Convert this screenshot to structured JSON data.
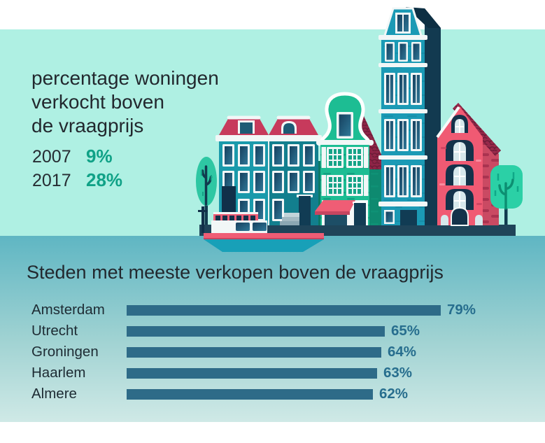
{
  "top": {
    "title": "percentage woningen\nverkocht boven\nde vraagprijs",
    "stats": [
      {
        "year": "2007",
        "value": "9%"
      },
      {
        "year": "2017",
        "value": "28%"
      }
    ]
  },
  "chart": {
    "title": "Steden met meeste verkopen boven de vraagprijs"
  },
  "chart_data": {
    "type": "bar",
    "orientation": "horizontal",
    "title": "Steden met meeste verkopen boven de vraagprijs",
    "categories": [
      "Amsterdam",
      "Utrecht",
      "Groningen",
      "Haarlem",
      "Almere"
    ],
    "values": [
      79,
      65,
      64,
      63,
      62
    ],
    "value_labels": [
      "79%",
      "65%",
      "64%",
      "63%",
      "62%"
    ],
    "xlim": [
      0,
      100
    ],
    "grid": false,
    "legend": false
  },
  "illustration": {
    "scene_elements": [
      "tree-left",
      "house-blue-canal",
      "house-green-bell-gable",
      "house-maroon-roof",
      "house-tall-teal",
      "house-red-brick",
      "tree-right",
      "canal-boat",
      "quay"
    ]
  },
  "colors": {
    "mint_bg": "#aff0e3",
    "water_top": "#5fb6c3",
    "water_bottom": "#cfe9e6",
    "accent_teal": "#10a287",
    "bar_blue": "#2e6b88",
    "value_blue": "#276e8e",
    "text_dark": "#22282e",
    "house_red": "#c73a5c",
    "house_pink": "#f05a73",
    "house_teal": "#1b9ab5",
    "house_green": "#1dbd93",
    "tree_green": "#2bd0a6",
    "navy": "#123a50"
  }
}
